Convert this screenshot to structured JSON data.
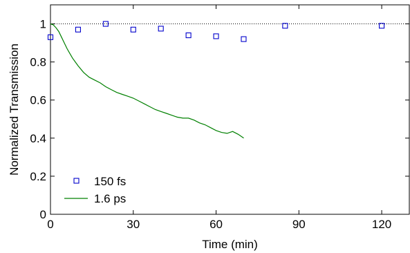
{
  "chart_data": {
    "type": "scatter",
    "xlabel": "Time (min)",
    "ylabel": "Normalized Transmission",
    "xlim": [
      0,
      130
    ],
    "ylim": [
      0,
      1.1
    ],
    "xticks": [
      "0",
      "30",
      "60",
      "90",
      "120"
    ],
    "yticks": [
      "0",
      "0.2",
      "0.4",
      "0.6",
      "0.8",
      "1"
    ],
    "reference_line": {
      "y": 1.0,
      "style": "dotted"
    },
    "legend_position": "bottom-left",
    "series": [
      {
        "name": "150 fs",
        "kind": "markers",
        "marker": "square",
        "color": "#0000cc",
        "x": [
          0,
          10,
          20,
          30,
          40,
          50,
          60,
          70,
          85,
          120
        ],
        "y": [
          0.93,
          0.97,
          1.0,
          0.97,
          0.975,
          0.94,
          0.935,
          0.92,
          0.99,
          0.99
        ]
      },
      {
        "name": "1.6 ps",
        "kind": "line",
        "color": "#008000",
        "x": [
          0,
          1,
          2,
          3,
          4,
          5,
          6,
          7,
          8,
          9,
          10,
          12,
          14,
          16,
          18,
          20,
          22,
          24,
          26,
          28,
          30,
          32,
          34,
          36,
          38,
          40,
          42,
          44,
          46,
          48,
          50,
          52,
          54,
          56,
          58,
          60,
          62,
          64,
          66,
          68,
          70
        ],
        "y": [
          1.0,
          0.995,
          0.98,
          0.96,
          0.93,
          0.9,
          0.87,
          0.845,
          0.82,
          0.8,
          0.78,
          0.745,
          0.72,
          0.705,
          0.69,
          0.67,
          0.655,
          0.64,
          0.63,
          0.62,
          0.61,
          0.595,
          0.58,
          0.565,
          0.55,
          0.54,
          0.53,
          0.52,
          0.51,
          0.505,
          0.505,
          0.495,
          0.48,
          0.47,
          0.455,
          0.44,
          0.43,
          0.425,
          0.435,
          0.42,
          0.4
        ]
      }
    ]
  }
}
